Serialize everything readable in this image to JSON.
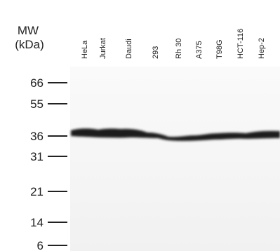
{
  "axis_label": {
    "line1": "MW",
    "line2": "(kDa)"
  },
  "markers": [
    "66",
    "55",
    "36",
    "31",
    "21",
    "14",
    "6"
  ],
  "lanes": [
    "HeLa",
    "Jurkat",
    "Daudi",
    "293",
    "Rh 30",
    "A375",
    "T98G",
    "HCT-116",
    "Hep-2"
  ]
}
